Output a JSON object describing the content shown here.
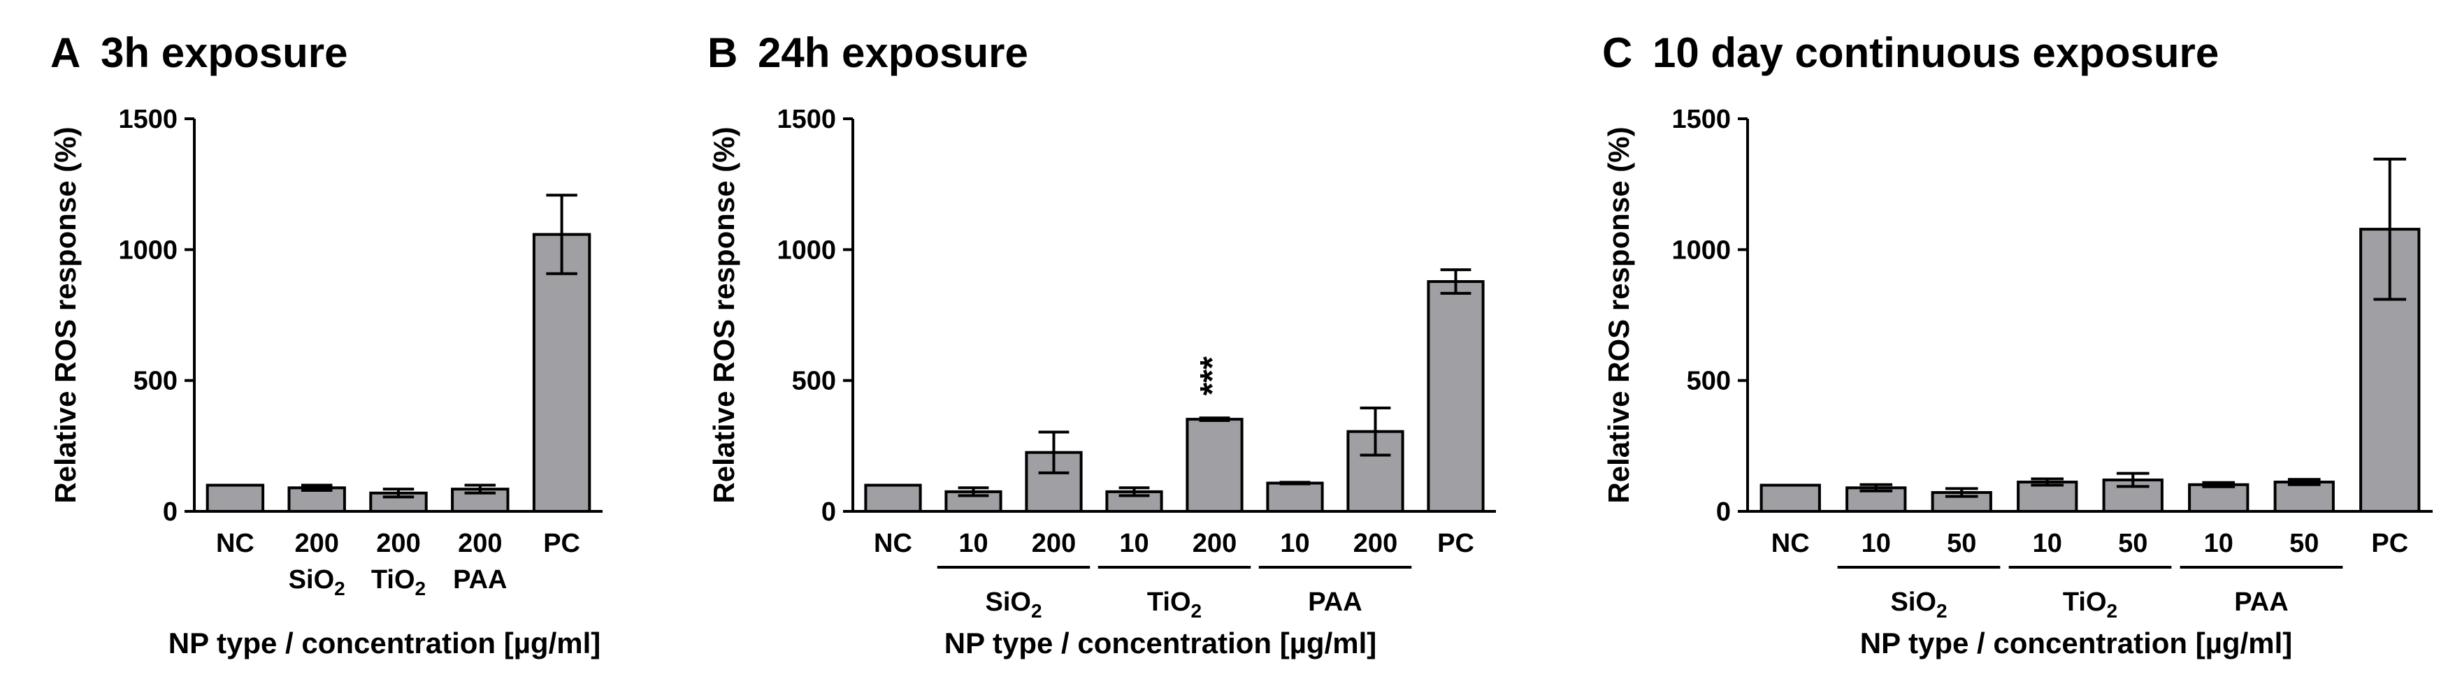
{
  "chart_data": [
    {
      "type": "bar",
      "panel_letter": "A",
      "title": "3h exposure",
      "ylabel": "Relative ROS response (%)",
      "xlabel": "NP type / concentration [µg/ml]",
      "ylim": [
        0,
        1500
      ],
      "yticks": [
        "0",
        "500",
        "1000",
        "1500"
      ],
      "grid": false,
      "categories": [
        {
          "line1": "NC",
          "line2": ""
        },
        {
          "line1": "200",
          "line2": "SiO",
          "sub": "2"
        },
        {
          "line1": "200",
          "line2": "TiO",
          "sub": "2"
        },
        {
          "line1": "200",
          "line2": "PAA"
        },
        {
          "line1": "PC",
          "line2": ""
        }
      ],
      "values": [
        100,
        90,
        70,
        85,
        1058
      ],
      "errors": [
        0,
        10,
        15,
        15,
        150
      ],
      "groups": [],
      "annotations": [],
      "bar_color": "#a0a0a4"
    },
    {
      "type": "bar",
      "panel_letter": "B",
      "title": "24h exposure",
      "ylabel": "Relative ROS response (%)",
      "xlabel": "NP type / concentration [µg/ml]",
      "ylim": [
        0,
        1500
      ],
      "yticks": [
        "0",
        "500",
        "1000",
        "1500"
      ],
      "grid": false,
      "categories": [
        {
          "line1": "NC"
        },
        {
          "line1": "10"
        },
        {
          "line1": "200"
        },
        {
          "line1": "10"
        },
        {
          "line1": "200"
        },
        {
          "line1": "10"
        },
        {
          "line1": "200"
        },
        {
          "line1": "PC"
        }
      ],
      "values": [
        100,
        75,
        225,
        75,
        352,
        108,
        305,
        878
      ],
      "errors": [
        0,
        15,
        78,
        15,
        5,
        3,
        90,
        45
      ],
      "groups": [
        {
          "label": "SiO",
          "sub": "2",
          "from": 1,
          "to": 2
        },
        {
          "label": "TiO",
          "sub": "2",
          "from": 3,
          "to": 4
        },
        {
          "label": "PAA",
          "sub": "",
          "from": 5,
          "to": 6
        }
      ],
      "annotations": [
        {
          "index": 4,
          "text": "***"
        }
      ],
      "bar_color": "#a0a0a4"
    },
    {
      "type": "bar",
      "panel_letter": "C",
      "title": "10 day continuous exposure",
      "ylabel": "Relative ROS response (%)",
      "xlabel": "NP type / concentration [µg/ml]",
      "ylim": [
        0,
        1500
      ],
      "yticks": [
        "0",
        "500",
        "1000",
        "1500"
      ],
      "grid": false,
      "categories": [
        {
          "line1": "NC"
        },
        {
          "line1": "10"
        },
        {
          "line1": "50"
        },
        {
          "line1": "10"
        },
        {
          "line1": "50"
        },
        {
          "line1": "10"
        },
        {
          "line1": "50"
        },
        {
          "line1": "PC"
        }
      ],
      "values": [
        100,
        90,
        72,
        112,
        120,
        102,
        112,
        1078
      ],
      "errors": [
        0,
        12,
        15,
        12,
        25,
        8,
        10,
        268
      ],
      "groups": [
        {
          "label": "SiO",
          "sub": "2",
          "from": 1,
          "to": 2
        },
        {
          "label": "TiO",
          "sub": "2",
          "from": 3,
          "to": 4
        },
        {
          "label": "PAA",
          "sub": "",
          "from": 5,
          "to": 6
        }
      ],
      "annotations": [],
      "bar_color": "#a0a0a4"
    }
  ]
}
